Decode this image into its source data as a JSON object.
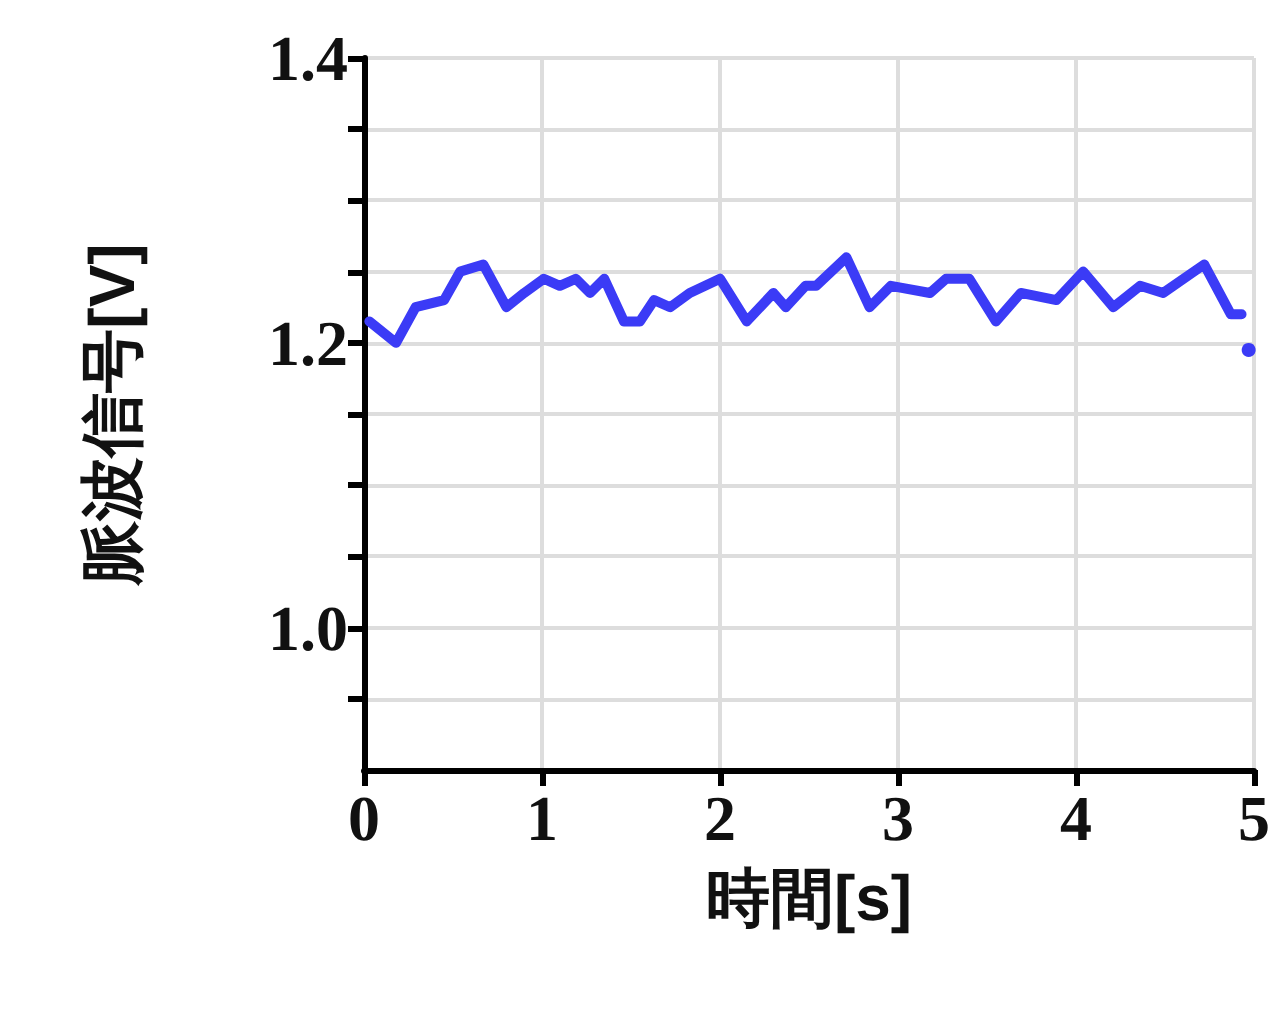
{
  "chart_data": {
    "type": "line",
    "xlabel": "時間[s]",
    "ylabel": "脈波信号[V]",
    "x": [
      0.03,
      0.18,
      0.29,
      0.45,
      0.54,
      0.67,
      0.8,
      0.9,
      1.01,
      1.1,
      1.19,
      1.27,
      1.35,
      1.46,
      1.55,
      1.63,
      1.72,
      1.83,
      2.0,
      2.15,
      2.3,
      2.37,
      2.48,
      2.54,
      2.71,
      2.84,
      2.96,
      3.18,
      3.27,
      3.4,
      3.55,
      3.69,
      3.89,
      4.04,
      4.21,
      4.36,
      4.49,
      4.72,
      4.87,
      4.93,
      4.95,
      4.97
    ],
    "series": [
      {
        "color": "#3b3bf6",
        "values": [
          1.215,
          1.2,
          1.225,
          1.23,
          1.25,
          1.255,
          1.225,
          1.235,
          1.245,
          1.24,
          1.245,
          1.235,
          1.245,
          1.215,
          1.215,
          1.23,
          1.225,
          1.235,
          1.245,
          1.215,
          1.235,
          1.225,
          1.24,
          1.24,
          1.26,
          1.225,
          1.24,
          1.235,
          1.245,
          1.245,
          1.215,
          1.235,
          1.23,
          1.25,
          1.225,
          1.24,
          1.235,
          1.255,
          1.22,
          1.22,
          null,
          1.195
        ]
      }
    ],
    "xlim": [
      0,
      5
    ],
    "xticks": [
      0,
      1,
      2,
      3,
      4,
      5
    ],
    "ylim": [
      0.9,
      1.4
    ],
    "yticks": [
      {
        "value": 0.95,
        "label": null
      },
      {
        "value": 1,
        "label": "1.0"
      },
      {
        "value": 1.05,
        "label": null
      },
      {
        "value": 1.1,
        "label": null
      },
      {
        "value": 1.15,
        "label": null
      },
      1.2,
      {
        "value": 1.25,
        "label": null
      },
      {
        "value": 1.3,
        "label": null
      },
      {
        "value": 1.35,
        "label": null
      },
      1.4
    ],
    "grid": true,
    "marker": "none",
    "line_style": "solid"
  }
}
